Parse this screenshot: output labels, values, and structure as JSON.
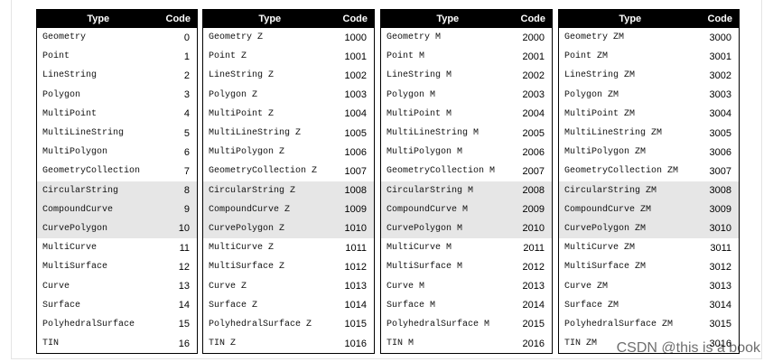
{
  "header": [
    "Type",
    "Code"
  ],
  "tables": [
    {
      "rows": [
        [
          "Geometry",
          0
        ],
        [
          "Point",
          1
        ],
        [
          "LineString",
          2
        ],
        [
          "Polygon",
          3
        ],
        [
          "MultiPoint",
          4
        ],
        [
          "MultiLineString",
          5
        ],
        [
          "MultiPolygon",
          6
        ],
        [
          "GeometryCollection",
          7
        ],
        [
          "CircularString",
          8
        ],
        [
          "CompoundCurve",
          9
        ],
        [
          "CurvePolygon",
          10
        ],
        [
          "MultiCurve",
          11
        ],
        [
          "MultiSurface",
          12
        ],
        [
          "Curve",
          13
        ],
        [
          "Surface",
          14
        ],
        [
          "PolyhedralSurface",
          15
        ],
        [
          "TIN",
          16
        ]
      ]
    },
    {
      "rows": [
        [
          "Geometry Z",
          1000
        ],
        [
          "Point Z",
          1001
        ],
        [
          "LineString Z",
          1002
        ],
        [
          "Polygon Z",
          1003
        ],
        [
          "MultiPoint Z",
          1004
        ],
        [
          "MultiLineString Z",
          1005
        ],
        [
          "MultiPolygon Z",
          1006
        ],
        [
          "GeometryCollection Z",
          1007
        ],
        [
          "CircularString Z",
          1008
        ],
        [
          "CompoundCurve Z",
          1009
        ],
        [
          "CurvePolygon Z",
          1010
        ],
        [
          "MultiCurve Z",
          1011
        ],
        [
          "MultiSurface Z",
          1012
        ],
        [
          "Curve Z",
          1013
        ],
        [
          "Surface Z",
          1014
        ],
        [
          "PolyhedralSurface Z",
          1015
        ],
        [
          "TIN Z",
          1016
        ]
      ]
    },
    {
      "rows": [
        [
          "Geometry M",
          2000
        ],
        [
          "Point M",
          2001
        ],
        [
          "LineString M",
          2002
        ],
        [
          "Polygon M",
          2003
        ],
        [
          "MultiPoint M",
          2004
        ],
        [
          "MultiLineString M",
          2005
        ],
        [
          "MultiPolygon M",
          2006
        ],
        [
          "GeometryCollection M",
          2007
        ],
        [
          "CircularString M",
          2008
        ],
        [
          "CompoundCurve M",
          2009
        ],
        [
          "CurvePolygon M",
          2010
        ],
        [
          "MultiCurve M",
          2011
        ],
        [
          "MultiSurface M",
          2012
        ],
        [
          "Curve M",
          2013
        ],
        [
          "Surface M",
          2014
        ],
        [
          "PolyhedralSurface M",
          2015
        ],
        [
          "TIN M",
          2016
        ]
      ]
    },
    {
      "rows": [
        [
          "Geometry ZM",
          3000
        ],
        [
          "Point ZM",
          3001
        ],
        [
          "LineString ZM",
          3002
        ],
        [
          "Polygon ZM",
          3003
        ],
        [
          "MultiPoint ZM",
          3004
        ],
        [
          "MultiLineString ZM",
          3005
        ],
        [
          "MultiPolygon ZM",
          3006
        ],
        [
          "GeometryCollection ZM",
          3007
        ],
        [
          "CircularString ZM",
          3008
        ],
        [
          "CompoundCurve ZM",
          3009
        ],
        [
          "CurvePolygon ZM",
          3010
        ],
        [
          "MultiCurve ZM",
          3011
        ],
        [
          "MultiSurface ZM",
          3012
        ],
        [
          "Curve ZM",
          3013
        ],
        [
          "Surface ZM",
          3014
        ],
        [
          "PolyhedralSurface ZM",
          3015
        ],
        [
          "TIN ZM",
          3016
        ]
      ]
    }
  ],
  "watermark": "CSDN @this is  a book"
}
